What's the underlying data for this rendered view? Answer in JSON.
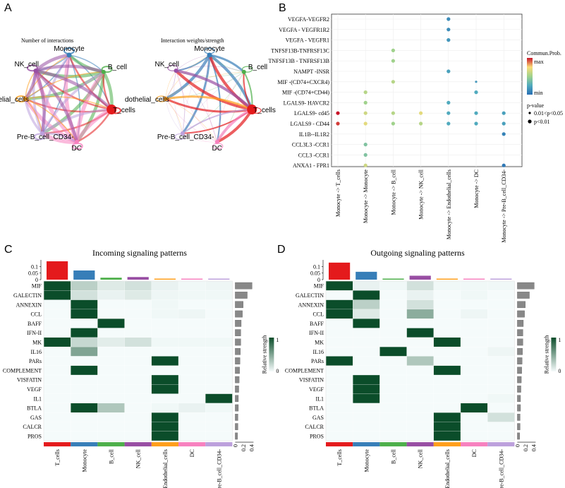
{
  "panel_letters": {
    "A": "A",
    "B": "B",
    "C": "C",
    "D": "D"
  },
  "colors": {
    "T_cells": "#e41a1c",
    "Monocyte": "#377eb8",
    "B_cell": "#4daf4a",
    "NK_cell": "#984ea3",
    "Endothelial_cells": "#ff9f1c",
    "DC": "#f781bf",
    "Pre-B_cell_CD34-": "#bca0dc",
    "heat_high": "#0b4d2a",
    "heat_low": "#f5fbfb",
    "bar_gray": "#888888"
  },
  "chart_data": [
    {
      "type": "network",
      "panel": "A",
      "title": "Number of interactions",
      "nodes": [
        "Monocyte",
        "B_cell",
        "T_cells",
        "DC",
        "Pre-B_cell_CD34-",
        "dothelial_cells",
        "NK_cell"
      ]
    },
    {
      "type": "network",
      "panel": "A",
      "title": "Interaction weights/strength",
      "nodes": [
        "Monocyte",
        "B_cell",
        "T_cells",
        "DC",
        "Pre-B_cell_CD34-",
        "dothelial_cells",
        "NK_cell"
      ]
    },
    {
      "type": "scatter",
      "panel": "B",
      "y_categories": [
        "VEGFA-VEGFR2",
        "VEGFA - VEGFR1R2",
        "VEGFA - VEGFR1",
        "TNFSF13B-TNFRSF13C",
        "TNFSF13B - TNFRSF13B",
        "NAMPT -INSR",
        "MIF -(CD74+CXCR4)",
        "MIF -(CD74+CD44)",
        "LGALS9- HAVCR2",
        "LGALS9- cd45",
        "LGALS9 - CD44",
        "IL1B--IL1R2",
        "CCL3L3 -CCR1",
        "CCL3 -CCR1",
        "ANXA1 - FPR1"
      ],
      "x_categories": [
        "Monocyte -> T_cells",
        "Monocyte -> Monocyte",
        "Monocyte -> B_cell",
        "Monocyte -> NK_cell",
        "Monocyte -> Endothelial_cells",
        "Monocyte -> DC",
        "Monocyte -> Pre-B_cell_CD34-"
      ],
      "points": [
        {
          "x": 4,
          "y": 0,
          "prob": 0.15,
          "sig": "large"
        },
        {
          "x": 4,
          "y": 1,
          "prob": 0.15,
          "sig": "large"
        },
        {
          "x": 4,
          "y": 2,
          "prob": 0.2,
          "sig": "large"
        },
        {
          "x": 2,
          "y": 3,
          "prob": 0.55,
          "sig": "large"
        },
        {
          "x": 2,
          "y": 4,
          "prob": 0.55,
          "sig": "large"
        },
        {
          "x": 4,
          "y": 5,
          "prob": 0.25,
          "sig": "large"
        },
        {
          "x": 2,
          "y": 6,
          "prob": 0.6,
          "sig": "large"
        },
        {
          "x": 5,
          "y": 6,
          "prob": 0.2,
          "sig": "small"
        },
        {
          "x": 1,
          "y": 7,
          "prob": 0.6,
          "sig": "large"
        },
        {
          "x": 5,
          "y": 7,
          "prob": 0.3,
          "sig": "large"
        },
        {
          "x": 1,
          "y": 8,
          "prob": 0.55,
          "sig": "large"
        },
        {
          "x": 4,
          "y": 8,
          "prob": 0.3,
          "sig": "large"
        },
        {
          "x": 0,
          "y": 9,
          "prob": 1.0,
          "sig": "large"
        },
        {
          "x": 1,
          "y": 9,
          "prob": 0.65,
          "sig": "large"
        },
        {
          "x": 2,
          "y": 9,
          "prob": 0.6,
          "sig": "large"
        },
        {
          "x": 3,
          "y": 9,
          "prob": 0.7,
          "sig": "large"
        },
        {
          "x": 4,
          "y": 9,
          "prob": 0.3,
          "sig": "large"
        },
        {
          "x": 5,
          "y": 9,
          "prob": 0.3,
          "sig": "large"
        },
        {
          "x": 6,
          "y": 9,
          "prob": 0.25,
          "sig": "large"
        },
        {
          "x": 0,
          "y": 10,
          "prob": 0.95,
          "sig": "large"
        },
        {
          "x": 1,
          "y": 10,
          "prob": 0.7,
          "sig": "large"
        },
        {
          "x": 2,
          "y": 10,
          "prob": 0.55,
          "sig": "large"
        },
        {
          "x": 3,
          "y": 10,
          "prob": 0.6,
          "sig": "large"
        },
        {
          "x": 4,
          "y": 10,
          "prob": 0.3,
          "sig": "large"
        },
        {
          "x": 5,
          "y": 10,
          "prob": 0.3,
          "sig": "large"
        },
        {
          "x": 6,
          "y": 10,
          "prob": 0.25,
          "sig": "large"
        },
        {
          "x": 6,
          "y": 11,
          "prob": 0.1,
          "sig": "large"
        },
        {
          "x": 1,
          "y": 12,
          "prob": 0.45,
          "sig": "large"
        },
        {
          "x": 1,
          "y": 13,
          "prob": 0.45,
          "sig": "large"
        },
        {
          "x": 1,
          "y": 14,
          "prob": 0.65,
          "sig": "large"
        },
        {
          "x": 6,
          "y": 14,
          "prob": 0.05,
          "sig": "large"
        }
      ],
      "legend": {
        "title": "Commun.Prob.",
        "max_label": "max",
        "min_label": "min",
        "pvalue_title": "p-value",
        "pvalue_small": "0.01<p<0.05",
        "pvalue_large": "p<0.01"
      }
    },
    {
      "type": "heatmap",
      "panel": "C",
      "title": "Incoming signaling patterns",
      "rows": [
        "MIF",
        "GALECTIN",
        "ANNEXIN",
        "CCL",
        "BAFF",
        "IFN-II",
        "MK",
        "IL16",
        "PARs",
        "COMPLEMENT",
        "VISFATIN",
        "VEGF",
        "IL1",
        "BTLA",
        "GAS",
        "CALCR",
        "PROS"
      ],
      "columns": [
        "T_cells",
        "Monocyte",
        "B_cell",
        "NK_cell",
        "Endothelial_cells",
        "DC",
        "Pre-B_cell_CD34-"
      ],
      "values": [
        [
          1,
          0.25,
          0.1,
          0.15,
          0.05,
          0.02,
          0.03
        ],
        [
          1,
          0.15,
          0.05,
          0.1,
          0.03,
          0.02,
          0.02
        ],
        [
          0,
          1,
          0,
          0,
          0.02,
          0,
          0
        ],
        [
          0,
          1,
          0,
          0,
          0.02,
          0.03,
          0
        ],
        [
          0,
          0,
          1,
          0,
          0,
          0,
          0
        ],
        [
          0,
          1,
          0,
          0,
          0,
          0,
          0
        ],
        [
          1,
          0.2,
          0.08,
          0.15,
          0.02,
          0.02,
          0.02
        ],
        [
          0,
          0.5,
          0,
          0,
          0,
          0,
          0
        ],
        [
          0,
          0,
          0,
          0,
          1,
          0,
          0
        ],
        [
          0,
          1,
          0,
          0,
          0,
          0,
          0
        ],
        [
          0,
          0,
          0,
          0,
          1,
          0,
          0
        ],
        [
          0,
          0,
          0,
          0,
          1,
          0,
          0
        ],
        [
          0,
          0,
          0,
          0,
          0,
          0,
          1
        ],
        [
          0,
          1,
          0.3,
          0,
          0.02,
          0.05,
          0.02
        ],
        [
          0,
          0,
          0,
          0,
          1,
          0,
          0
        ],
        [
          0,
          0,
          0,
          0,
          1,
          0,
          0
        ],
        [
          0,
          0,
          0,
          0,
          1,
          0,
          0
        ]
      ],
      "top_bars": [
        0.14,
        0.07,
        0.015,
        0.02,
        0.005,
        0.005,
        0.005
      ],
      "top_ticks": [
        "0.1",
        "0.05",
        "0"
      ],
      "right_bars": [
        0.42,
        0.3,
        0.2,
        0.18,
        0.15,
        0.14,
        0.14,
        0.13,
        0.12,
        0.11,
        0.1,
        0.09,
        0.08,
        0.08,
        0.07,
        0.07,
        0.06
      ],
      "right_ticks": [
        "0",
        "0.2",
        "0.4"
      ],
      "legend": {
        "title": "Relative strength",
        "max": "1",
        "min": "0"
      }
    },
    {
      "type": "heatmap",
      "panel": "D",
      "title": "Outgoing signaling patterns",
      "rows": [
        "MIF",
        "GALECTIN",
        "ANNEXIN",
        "CCL",
        "BAFF",
        "IFN-II",
        "MK",
        "IL16",
        "PARs",
        "COMPLEMENT",
        "VISFATIN",
        "VEGF",
        "IL1",
        "BTLA",
        "GAS",
        "CALCR",
        "PROS"
      ],
      "columns": [
        "T_cells",
        "Monocyte",
        "B_cell",
        "NK_cell",
        "Endothelial_cells",
        "DC",
        "Pre-B_cell_CD34-"
      ],
      "values": [
        [
          1,
          0.05,
          0.02,
          0.15,
          0.02,
          0.02,
          0.02
        ],
        [
          0,
          1,
          0,
          0.05,
          0,
          0.02,
          0
        ],
        [
          1,
          0.25,
          0,
          0.15,
          0,
          0,
          0
        ],
        [
          1,
          0.1,
          0,
          0.45,
          0,
          0.03,
          0
        ],
        [
          0,
          1,
          0,
          0,
          0,
          0,
          0
        ],
        [
          0,
          0,
          0,
          1,
          0,
          0,
          0
        ],
        [
          0,
          0,
          0,
          0,
          1,
          0,
          0
        ],
        [
          0,
          0,
          1,
          0,
          0,
          0,
          0.03
        ],
        [
          1,
          0,
          0,
          0.3,
          0,
          0,
          0
        ],
        [
          0,
          0,
          0,
          0,
          1,
          0,
          0
        ],
        [
          0,
          1,
          0,
          0,
          0,
          0,
          0
        ],
        [
          0,
          1,
          0,
          0,
          0,
          0,
          0
        ],
        [
          0,
          1,
          0,
          0,
          0,
          0,
          0.02
        ],
        [
          0,
          0,
          0,
          0,
          0,
          1,
          0
        ],
        [
          0,
          0,
          0,
          0,
          1,
          0,
          0.15
        ],
        [
          0,
          0,
          0,
          0,
          1,
          0,
          0
        ],
        [
          0,
          0,
          0,
          0,
          1,
          0,
          0
        ]
      ],
      "top_bars": [
        0.13,
        0.06,
        0.005,
        0.03,
        0.005,
        0.005,
        0.005
      ],
      "top_ticks": [
        "0.1",
        "0.05",
        "0"
      ],
      "right_bars": [
        0.42,
        0.3,
        0.2,
        0.18,
        0.15,
        0.14,
        0.14,
        0.13,
        0.12,
        0.11,
        0.1,
        0.09,
        0.08,
        0.08,
        0.07,
        0.07,
        0.06
      ],
      "right_ticks": [
        "0",
        "0.2",
        "0.4"
      ],
      "legend": {
        "title": "Relative strength",
        "max": "1",
        "min": "0"
      }
    }
  ]
}
